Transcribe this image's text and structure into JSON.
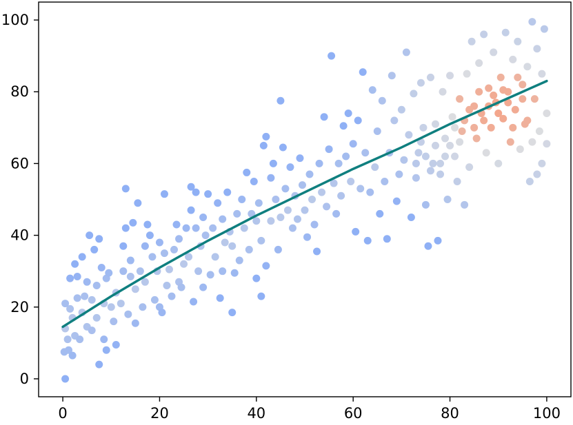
{
  "chart_data": {
    "type": "scatter",
    "title": "",
    "xlabel": "",
    "ylabel": "",
    "xlim": [
      -5,
      105
    ],
    "ylim": [
      -5,
      105
    ],
    "x_ticks": [
      0,
      20,
      40,
      60,
      80,
      100
    ],
    "y_ticks": [
      0,
      20,
      40,
      60,
      80,
      100
    ],
    "x_tick_labels": [
      "0",
      "20",
      "40",
      "60",
      "80",
      "100"
    ],
    "y_tick_labels": [
      "0",
      "20",
      "40",
      "60",
      "80",
      "100"
    ],
    "grid": false,
    "legend": "none",
    "colors": {
      "cool": "#8fb0f5",
      "neutral": "#dcdde0",
      "warm": "#f4a58a",
      "fit_line": "#0f7f7f",
      "axes": "#000000"
    },
    "point_color_scale": "coolwarm by local point density (dense cluster near x≈90, y≈75 is warm)",
    "series": [
      {
        "kind": "points",
        "points": [
          [
            0.5,
            0
          ],
          [
            0.3,
            7.5
          ],
          [
            1,
            11
          ],
          [
            0.5,
            14
          ],
          [
            1.5,
            19.5
          ],
          [
            0.5,
            21
          ],
          [
            1.2,
            8
          ],
          [
            2,
            6.5
          ],
          [
            2,
            17
          ],
          [
            2.5,
            12
          ],
          [
            1.5,
            28
          ],
          [
            2.5,
            32
          ],
          [
            3,
            22.5
          ],
          [
            3,
            28.5
          ],
          [
            3.5,
            11
          ],
          [
            4,
            18.5
          ],
          [
            4,
            34
          ],
          [
            4.5,
            23
          ],
          [
            5,
            14.5
          ],
          [
            5,
            27
          ],
          [
            5.5,
            40
          ],
          [
            6,
            13.5
          ],
          [
            6,
            22
          ],
          [
            6.5,
            36
          ],
          [
            7,
            17
          ],
          [
            7,
            26
          ],
          [
            7.5,
            4
          ],
          [
            7.5,
            39
          ],
          [
            8,
            31
          ],
          [
            8.5,
            21
          ],
          [
            8.5,
            11
          ],
          [
            9,
            8
          ],
          [
            9,
            28
          ],
          [
            9.5,
            29.5
          ],
          [
            10,
            20
          ],
          [
            10.5,
            16
          ],
          [
            11,
            24
          ],
          [
            11,
            9.5
          ],
          [
            12,
            21
          ],
          [
            12.5,
            30
          ],
          [
            12.5,
            37
          ],
          [
            13,
            42
          ],
          [
            13,
            53
          ],
          [
            13.5,
            18
          ],
          [
            14,
            28.5
          ],
          [
            14,
            33
          ],
          [
            14.5,
            43.5
          ],
          [
            15,
            15.5
          ],
          [
            15,
            25
          ],
          [
            15.5,
            49
          ],
          [
            16,
            30
          ],
          [
            16.5,
            20
          ],
          [
            17,
            37
          ],
          [
            17,
            27
          ],
          [
            17.5,
            43
          ],
          [
            18,
            40
          ],
          [
            18.5,
            34
          ],
          [
            19,
            22
          ],
          [
            19.5,
            30
          ],
          [
            20,
            38
          ],
          [
            20,
            20
          ],
          [
            20.5,
            18.5
          ],
          [
            21,
            35
          ],
          [
            21,
            51.5
          ],
          [
            21.5,
            26
          ],
          [
            22,
            30.5
          ],
          [
            22.5,
            23
          ],
          [
            23,
            36
          ],
          [
            23.5,
            43
          ],
          [
            24,
            27
          ],
          [
            24,
            39
          ],
          [
            24.5,
            25.5
          ],
          [
            25,
            32
          ],
          [
            25.5,
            42
          ],
          [
            26,
            34
          ],
          [
            26.5,
            53.5
          ],
          [
            26.5,
            47
          ],
          [
            27,
            21.5
          ],
          [
            27.5,
            42
          ],
          [
            27.5,
            52
          ],
          [
            28,
            30
          ],
          [
            28.5,
            37
          ],
          [
            29,
            45
          ],
          [
            29,
            25.5
          ],
          [
            29.5,
            40
          ],
          [
            30,
            51.5
          ],
          [
            30.5,
            29
          ],
          [
            31,
            42
          ],
          [
            31.5,
            34
          ],
          [
            32,
            49
          ],
          [
            32.5,
            22.5
          ],
          [
            33,
            44.5
          ],
          [
            33,
            30
          ],
          [
            33.5,
            38
          ],
          [
            34,
            52
          ],
          [
            34.5,
            41
          ],
          [
            35,
            37
          ],
          [
            35,
            18.5
          ],
          [
            35.5,
            29.5
          ],
          [
            36,
            46
          ],
          [
            36.5,
            33
          ],
          [
            37,
            50
          ],
          [
            37.5,
            42
          ],
          [
            38,
            57.5
          ],
          [
            38.5,
            36
          ],
          [
            39,
            46
          ],
          [
            39.5,
            55
          ],
          [
            40,
            44
          ],
          [
            40,
            28
          ],
          [
            40.5,
            49
          ],
          [
            41,
            23
          ],
          [
            41,
            38.5
          ],
          [
            41.5,
            65
          ],
          [
            42,
            67.5
          ],
          [
            42,
            31.5
          ],
          [
            43,
            56
          ],
          [
            43,
            44
          ],
          [
            43.5,
            60
          ],
          [
            44,
            50
          ],
          [
            44.5,
            36
          ],
          [
            45,
            77.5
          ],
          [
            45,
            45
          ],
          [
            45.5,
            64.5
          ],
          [
            46,
            53
          ],
          [
            46.5,
            47
          ],
          [
            47,
            59
          ],
          [
            47.5,
            42
          ],
          [
            48,
            51
          ],
          [
            48.5,
            44.5
          ],
          [
            49,
            61.5
          ],
          [
            49.5,
            54
          ],
          [
            50,
            47
          ],
          [
            50.5,
            39.5
          ],
          [
            51,
            57
          ],
          [
            51.5,
            50
          ],
          [
            52,
            43
          ],
          [
            52.5,
            35.5
          ],
          [
            53,
            60
          ],
          [
            53.5,
            52
          ],
          [
            54,
            73
          ],
          [
            54.5,
            48
          ],
          [
            55,
            64
          ],
          [
            55.5,
            90
          ],
          [
            56,
            54.5
          ],
          [
            56.5,
            46
          ],
          [
            57,
            60
          ],
          [
            57.5,
            51
          ],
          [
            58,
            70.5
          ],
          [
            58.5,
            62
          ],
          [
            59,
            74
          ],
          [
            59.5,
            55
          ],
          [
            60,
            65.5
          ],
          [
            60.5,
            41
          ],
          [
            61,
            72
          ],
          [
            61.5,
            53
          ],
          [
            62,
            85.5
          ],
          [
            62.5,
            63
          ],
          [
            63,
            38.5
          ],
          [
            63.5,
            52
          ],
          [
            64,
            80.5
          ],
          [
            64.5,
            59
          ],
          [
            65,
            69
          ],
          [
            65.5,
            46
          ],
          [
            66,
            77.5
          ],
          [
            66.5,
            55
          ],
          [
            67,
            39
          ],
          [
            67.5,
            63
          ],
          [
            68,
            84.5
          ],
          [
            68.5,
            72
          ],
          [
            69,
            49.5
          ],
          [
            69.5,
            57
          ],
          [
            70,
            75
          ],
          [
            70.5,
            61
          ],
          [
            71,
            91
          ],
          [
            71.5,
            68
          ],
          [
            72,
            45
          ],
          [
            72.5,
            79.5
          ],
          [
            73,
            56
          ],
          [
            73.5,
            63
          ],
          [
            74,
            82.5
          ],
          [
            74.5,
            70
          ],
          [
            75,
            48.5
          ],
          [
            75.5,
            37
          ],
          [
            76,
            84
          ],
          [
            76.5,
            60
          ],
          [
            77,
            71
          ],
          [
            77.5,
            38.5
          ],
          [
            78,
            57
          ],
          [
            78.5,
            80
          ],
          [
            79,
            67
          ],
          [
            79.5,
            50
          ],
          [
            80,
            84.5
          ],
          [
            80.5,
            73
          ],
          [
            81,
            62
          ],
          [
            81.5,
            55
          ],
          [
            82,
            78
          ],
          [
            82.5,
            69
          ],
          [
            83,
            48.5
          ],
          [
            83.5,
            85
          ],
          [
            84,
            59
          ],
          [
            84.5,
            94
          ],
          [
            85,
            76
          ],
          [
            85.5,
            67
          ],
          [
            86,
            88
          ],
          [
            86.5,
            74
          ],
          [
            87,
            96
          ],
          [
            87.5,
            63
          ],
          [
            88,
            81
          ],
          [
            88.5,
            70
          ],
          [
            89,
            91
          ],
          [
            89.5,
            77
          ],
          [
            90,
            60
          ],
          [
            90.5,
            84
          ],
          [
            91,
            72.5
          ],
          [
            91.5,
            96.5
          ],
          [
            92,
            80
          ],
          [
            92.5,
            66
          ],
          [
            93,
            89
          ],
          [
            93.5,
            75
          ],
          [
            94,
            94
          ],
          [
            94.5,
            64
          ],
          [
            95,
            82
          ],
          [
            95.5,
            71
          ],
          [
            96,
            87
          ],
          [
            96.5,
            55
          ],
          [
            97,
            99.5
          ],
          [
            97.5,
            78
          ],
          [
            98,
            92
          ],
          [
            98.5,
            69
          ],
          [
            99,
            85
          ],
          [
            99.5,
            97.5
          ],
          [
            100,
            74
          ],
          [
            100,
            65.5
          ],
          [
            99,
            60
          ],
          [
            98,
            57
          ],
          [
            97,
            66
          ],
          [
            96,
            72
          ],
          [
            95,
            78
          ],
          [
            94,
            84
          ],
          [
            93,
            70
          ],
          [
            92,
            77
          ],
          [
            91,
            80.5
          ],
          [
            90,
            74
          ],
          [
            89,
            79
          ],
          [
            88,
            76
          ],
          [
            87,
            72
          ],
          [
            86,
            80
          ],
          [
            85,
            70
          ],
          [
            84,
            75
          ],
          [
            83,
            72
          ],
          [
            82,
            66
          ],
          [
            81,
            70
          ],
          [
            80,
            65
          ],
          [
            79,
            62
          ],
          [
            78,
            60
          ],
          [
            77,
            65
          ],
          [
            76,
            58
          ],
          [
            75,
            62
          ],
          [
            74,
            66
          ],
          [
            73,
            60
          ]
        ]
      },
      {
        "kind": "fit_line",
        "points": [
          [
            0,
            14.5
          ],
          [
            10,
            23
          ],
          [
            20,
            31
          ],
          [
            30,
            38.5
          ],
          [
            40,
            45.5
          ],
          [
            50,
            52
          ],
          [
            60,
            58.5
          ],
          [
            70,
            64.5
          ],
          [
            80,
            71
          ],
          [
            90,
            77
          ],
          [
            100,
            83
          ]
        ]
      }
    ]
  }
}
